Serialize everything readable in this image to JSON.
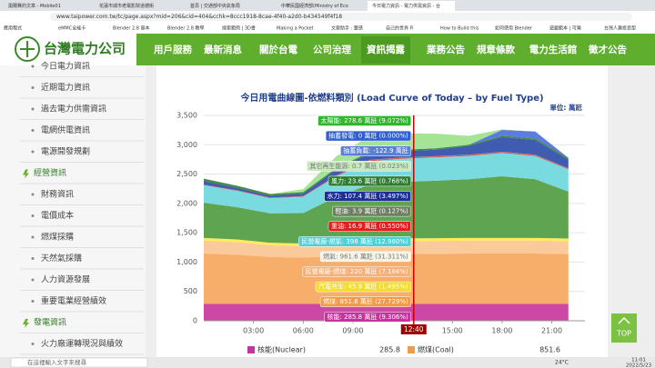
{
  "browser": {
    "tabs": [
      "奧爾費的文章 - Mobile01",
      "花蓮市城市老電影院道德街",
      "首頁 | 交通部中央氣象局",
      "中華民國經濟部(Ministry of Eco",
      "今日電力資訊 - 電力供需資訊 - 台"
    ],
    "url": "www.taipower.com.tw/tc/page.aspx?mid=206&cid=404&cchk=8ccc1918-8cae-4f40-a2d0-b434549f4f18",
    "bookmarks": [
      "應用程式",
      "eMMC全能卡",
      "Blender 2.8 基本",
      "Blender 2.8 教學",
      "搜索範例 | 3D書",
      "Making a Pocket",
      "文案助手 : 靈感",
      "自己的世界 Fi",
      "How to Build this",
      "如何使用 Blender",
      "遊戲範本 | 可樂",
      "台灣人壽投資型"
    ]
  },
  "header": {
    "logo": "台灣電力公司",
    "nav": [
      "用戶服務",
      "最新消息",
      "關於台電",
      "公司治理",
      "資訊揭露",
      "業務公告",
      "規章條款",
      "電力生活館",
      "徵才公告"
    ]
  },
  "sidebar": [
    {
      "text": "今日電力資訊",
      "kind": "item"
    },
    {
      "text": "近期電力資訊",
      "kind": "item"
    },
    {
      "text": "過去電力供需資訊",
      "kind": "item"
    },
    {
      "text": "電網供電資訊",
      "kind": "item"
    },
    {
      "text": "電源開發規劃",
      "kind": "item"
    },
    {
      "text": "經營資訊",
      "kind": "header"
    },
    {
      "text": "財務資訊",
      "kind": "item"
    },
    {
      "text": "電價成本",
      "kind": "item"
    },
    {
      "text": "燃煤採購",
      "kind": "item"
    },
    {
      "text": "天然氣採購",
      "kind": "item"
    },
    {
      "text": "人力資源發展",
      "kind": "item"
    },
    {
      "text": "重要電業經營績效",
      "kind": "item"
    },
    {
      "text": "發電資訊",
      "kind": "header"
    },
    {
      "text": "火力廠運轉現況與績效",
      "kind": "item"
    }
  ],
  "chart_data": {
    "type": "stacked-area",
    "title": "今日用電曲線圖-依燃料類別 (Load Curve of Today – by Fuel Type)",
    "unit": "單位: 萬瓩",
    "x": [
      0,
      2,
      4,
      6,
      8,
      10,
      12,
      14,
      16,
      18,
      20,
      22
    ],
    "xlim": [
      0,
      23
    ],
    "xticks": [
      {
        "value": 3,
        "label": "03:00"
      },
      {
        "value": 6,
        "label": "06:00"
      },
      {
        "value": 9,
        "label": "09:00"
      },
      {
        "value": 15,
        "label": "15:00"
      },
      {
        "value": 18,
        "label": "18:00"
      },
      {
        "value": 21,
        "label": "21:00"
      }
    ],
    "ylim": [
      0,
      3500
    ],
    "yticks": [
      0,
      500,
      {
        "value": 1000,
        "label": "1,000"
      },
      {
        "value": 1500,
        "label": "1,500"
      },
      {
        "value": 2000,
        "label": "2,000"
      },
      {
        "value": 2500,
        "label": "2,500"
      },
      {
        "value": 3000,
        "label": "3,000"
      },
      {
        "value": 3500,
        "label": "3,500"
      }
    ],
    "grid": true,
    "series": [
      {
        "color": "#c8339b",
        "values": [
          285.8,
          285.8,
          285.8,
          285.8,
          285.8,
          285.8,
          285.8,
          285.8,
          285.8,
          285.8,
          285.8,
          285.8
        ]
      },
      {
        "color": "#f5a55a",
        "values": [
          860,
          840,
          800,
          790,
          820,
          850,
          851.6,
          855,
          860,
          860,
          860,
          850
        ]
      },
      {
        "color": "#f9c48f",
        "values": [
          220,
          215,
          200,
          195,
          210,
          220,
          220,
          220,
          220,
          220,
          220,
          220
        ]
      },
      {
        "color": "#ffe94a",
        "values": [
          45,
          45,
          45,
          45,
          46,
          46,
          45.9,
          46,
          46,
          46,
          46,
          46
        ]
      },
      {
        "color": "#4e9a3d",
        "values": [
          600,
          550,
          500,
          520,
          750,
          920,
          961.6,
          980,
          1000,
          1050,
          1000,
          800
        ]
      },
      {
        "color": "#6ad6dc",
        "values": [
          300,
          280,
          260,
          280,
          350,
          398,
          398,
          398,
          398,
          398,
          398,
          380
        ]
      },
      {
        "color": "#e03c3c",
        "values": [
          10,
          10,
          10,
          10,
          15,
          17,
          16.9,
          17,
          17,
          17,
          17,
          15
        ]
      },
      {
        "color": "#8a9a7a",
        "values": [
          0,
          0,
          0,
          0,
          2,
          4,
          3.9,
          4,
          4,
          4,
          4,
          2
        ]
      },
      {
        "color": "#2b4aa8",
        "values": [
          60,
          40,
          30,
          40,
          100,
          110,
          107.4,
          110,
          150,
          250,
          250,
          150
        ]
      },
      {
        "color": "#2e7d32",
        "values": [
          40,
          35,
          30,
          28,
          25,
          24,
          23.6,
          22,
          20,
          22,
          25,
          28
        ]
      },
      {
        "color": "#4a6ee0",
        "values": [
          0,
          0,
          0,
          0,
          0,
          0,
          0,
          0,
          0,
          100,
          120,
          0
        ]
      },
      {
        "color": "#9be08a",
        "values": [
          0,
          0,
          0,
          50,
          200,
          270,
          278.6,
          250,
          150,
          10,
          0,
          0
        ]
      }
    ],
    "crosshair": {
      "value": 12.667,
      "label": "12:40"
    },
    "tooltips": [
      {
        "text": "太陽能: 278.6 萬瓩 (9.072%)",
        "color": "#2db82d"
      },
      {
        "text": "抽蓄發電: 0 萬瓩 (0.000%)",
        "color": "#2f5fd0"
      },
      {
        "text": "抽蓄負載: -122.9 萬瓩",
        "color": "#5a7fd6"
      },
      {
        "text": "其它再生能源: 0.7 萬瓩 (0.023%)",
        "color": "#c9e8c0"
      },
      {
        "text": "風力: 23.6 萬瓩 (0.768%)",
        "color": "#2e7d32"
      },
      {
        "text": "水力: 107.4 萬瓩 (3.497%)",
        "color": "#1d2f9a"
      },
      {
        "text": "輕油: 3.9 萬瓩 (0.127%)",
        "color": "#6f7d62"
      },
      {
        "text": "重油: 16.9 萬瓩 (0.550%)",
        "color": "#e02020"
      },
      {
        "text": "民營電廠-燃氣: 398 萬瓩 (12.960%)",
        "color": "#4fcfd6"
      },
      {
        "text": "燃氣: 961.6 萬瓩 (31.311%)",
        "color": "#f4f4e8"
      },
      {
        "text": "民營電廠-燃煤: 220 萬瓩 (7.164%)",
        "color": "#f7b077"
      },
      {
        "text": "汽電共生: 45.9 萬瓩 (1.495%)",
        "color": "#f2dc30"
      },
      {
        "text": "燃煤: 851.6 萬瓩 (27.729%)",
        "color": "#f39a48"
      },
      {
        "text": "核能: 285.8 萬瓩 (9.306%)",
        "color": "#c8339b"
      }
    ],
    "legend": [
      {
        "name": "核能(Nuclear)",
        "value": 285.8,
        "color": "#c8339b"
      },
      {
        "name": "燃煤(Coal)",
        "value": 851.6,
        "color": "#f39a48"
      }
    ]
  },
  "scroll_top": "TOP",
  "taskbar": {
    "search": "在這裡輸入文字來搜尋",
    "weather": "24°C",
    "time": "11:01",
    "date": "2022/5/23"
  }
}
